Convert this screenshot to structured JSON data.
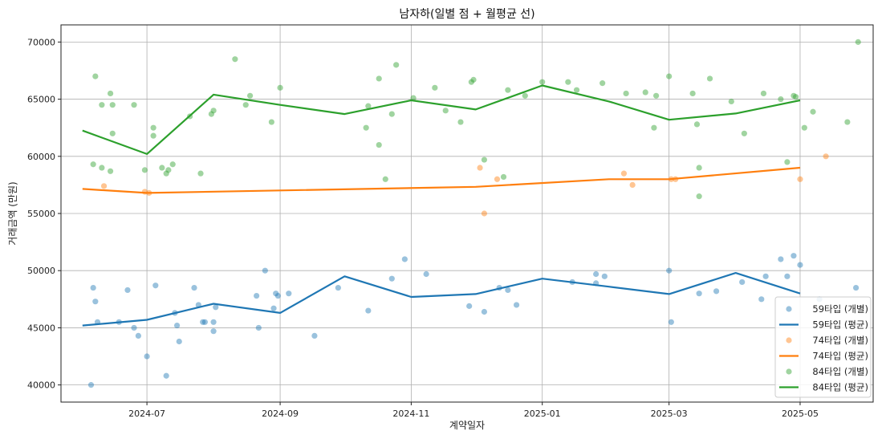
{
  "chart_data": {
    "type": "scatter+line",
    "title": "남자하(일별 점 + 월평균 선)",
    "xlabel": "계약일자",
    "ylabel": "거래금액 (만원)",
    "xlim": [
      "2024-05-22",
      "2025-06-04"
    ],
    "ylim": [
      38500,
      71500
    ],
    "yticks": [
      40000,
      45000,
      50000,
      55000,
      60000,
      65000,
      70000
    ],
    "xticks": [
      {
        "date": "2024-07-01",
        "label": "2024-07"
      },
      {
        "date": "2024-09-01",
        "label": "2024-09"
      },
      {
        "date": "2024-11-01",
        "label": "2024-11"
      },
      {
        "date": "2025-01-01",
        "label": "2025-01"
      },
      {
        "date": "2025-03-01",
        "label": "2025-03"
      },
      {
        "date": "2025-05-01",
        "label": "2025-05"
      }
    ],
    "grid": true,
    "legend_position": "lower-right",
    "series": [
      {
        "name": "59타입",
        "color": "#1f77b4",
        "points_label": "59타입 (개별)",
        "line_label": "59타입 (평균)",
        "points": [
          [
            "2024-06-05",
            40000
          ],
          [
            "2024-06-06",
            48500
          ],
          [
            "2024-06-07",
            47300
          ],
          [
            "2024-06-08",
            45500
          ],
          [
            "2024-06-18",
            45500
          ],
          [
            "2024-06-22",
            48300
          ],
          [
            "2024-06-25",
            45000
          ],
          [
            "2024-06-27",
            44300
          ],
          [
            "2024-07-01",
            42500
          ],
          [
            "2024-07-05",
            48700
          ],
          [
            "2024-07-10",
            40800
          ],
          [
            "2024-07-14",
            46300
          ],
          [
            "2024-07-15",
            45200
          ],
          [
            "2024-07-16",
            43800
          ],
          [
            "2024-07-23",
            48500
          ],
          [
            "2024-07-25",
            47000
          ],
          [
            "2024-07-27",
            45500
          ],
          [
            "2024-07-28",
            45500
          ],
          [
            "2024-08-01",
            44700
          ],
          [
            "2024-08-01",
            45500
          ],
          [
            "2024-08-02",
            46800
          ],
          [
            "2024-08-21",
            47800
          ],
          [
            "2024-08-22",
            45000
          ],
          [
            "2024-08-25",
            50000
          ],
          [
            "2024-08-29",
            46700
          ],
          [
            "2024-08-30",
            48000
          ],
          [
            "2024-08-31",
            47800
          ],
          [
            "2024-09-05",
            48000
          ],
          [
            "2024-09-17",
            44300
          ],
          [
            "2024-09-28",
            48500
          ],
          [
            "2024-10-12",
            46500
          ],
          [
            "2024-10-23",
            49300
          ],
          [
            "2024-10-29",
            51000
          ],
          [
            "2024-11-08",
            49700
          ],
          [
            "2024-11-28",
            46900
          ],
          [
            "2024-12-05",
            46400
          ],
          [
            "2024-12-12",
            48500
          ],
          [
            "2024-12-16",
            48300
          ],
          [
            "2024-12-20",
            47000
          ],
          [
            "2025-01-15",
            49000
          ],
          [
            "2025-01-26",
            48900
          ],
          [
            "2025-01-26",
            49700
          ],
          [
            "2025-01-30",
            49500
          ],
          [
            "2025-03-01",
            50000
          ],
          [
            "2025-03-02",
            45500
          ],
          [
            "2025-03-15",
            48000
          ],
          [
            "2025-03-23",
            48200
          ],
          [
            "2025-04-04",
            49000
          ],
          [
            "2025-04-13",
            47500
          ],
          [
            "2025-04-15",
            49500
          ],
          [
            "2025-04-22",
            51000
          ],
          [
            "2025-04-25",
            49500
          ],
          [
            "2025-04-28",
            51300
          ],
          [
            "2025-05-01",
            50500
          ],
          [
            "2025-05-10",
            47500
          ],
          [
            "2025-05-27",
            48500
          ]
        ],
        "monthly_avg": [
          [
            "2024-06-01",
            45200
          ],
          [
            "2024-07-01",
            45700
          ],
          [
            "2024-08-01",
            47100
          ],
          [
            "2024-09-01",
            46300
          ],
          [
            "2024-10-01",
            49500
          ],
          [
            "2024-11-01",
            47700
          ],
          [
            "2024-12-01",
            47950
          ],
          [
            "2025-01-01",
            49300
          ],
          [
            "2025-02-01",
            48600
          ],
          [
            "2025-03-01",
            47950
          ],
          [
            "2025-04-01",
            49800
          ],
          [
            "2025-05-01",
            48000
          ]
        ]
      },
      {
        "name": "74타입",
        "color": "#ff7f0e",
        "points_label": "74타입 (개별)",
        "line_label": "74타입 (평균)",
        "points": [
          [
            "2024-06-11",
            57400
          ],
          [
            "2024-06-30",
            56900
          ],
          [
            "2024-07-02",
            56800
          ],
          [
            "2024-12-03",
            59000
          ],
          [
            "2024-12-05",
            55000
          ],
          [
            "2024-12-11",
            58000
          ],
          [
            "2025-02-08",
            58500
          ],
          [
            "2025-02-12",
            57500
          ],
          [
            "2025-03-02",
            58000
          ],
          [
            "2025-03-04",
            58000
          ],
          [
            "2025-05-01",
            58000
          ],
          [
            "2025-05-13",
            60000
          ]
        ],
        "monthly_avg": [
          [
            "2024-06-01",
            57150
          ],
          [
            "2024-07-01",
            56800
          ],
          [
            "2024-12-01",
            57330
          ],
          [
            "2025-02-01",
            58000
          ],
          [
            "2025-03-01",
            58000
          ],
          [
            "2025-05-01",
            59000
          ]
        ]
      },
      {
        "name": "84타입",
        "color": "#2ca02c",
        "points_label": "84타입 (개별)",
        "line_label": "84타입 (평균)",
        "points": [
          [
            "2024-06-06",
            59300
          ],
          [
            "2024-06-07",
            67000
          ],
          [
            "2024-06-10",
            64500
          ],
          [
            "2024-06-10",
            59000
          ],
          [
            "2024-06-14",
            58700
          ],
          [
            "2024-06-14",
            65500
          ],
          [
            "2024-06-15",
            64500
          ],
          [
            "2024-06-15",
            62000
          ],
          [
            "2024-06-25",
            64500
          ],
          [
            "2024-06-30",
            58800
          ],
          [
            "2024-07-04",
            62500
          ],
          [
            "2024-07-04",
            61800
          ],
          [
            "2024-07-08",
            59000
          ],
          [
            "2024-07-10",
            58500
          ],
          [
            "2024-07-11",
            58800
          ],
          [
            "2024-07-13",
            59300
          ],
          [
            "2024-07-21",
            63500
          ],
          [
            "2024-07-26",
            58500
          ],
          [
            "2024-07-31",
            63700
          ],
          [
            "2024-08-01",
            64000
          ],
          [
            "2024-08-11",
            68500
          ],
          [
            "2024-08-16",
            64500
          ],
          [
            "2024-08-18",
            65300
          ],
          [
            "2024-08-28",
            63000
          ],
          [
            "2024-09-01",
            66000
          ],
          [
            "2024-10-11",
            62500
          ],
          [
            "2024-10-12",
            64400
          ],
          [
            "2024-10-17",
            61000
          ],
          [
            "2024-10-17",
            66800
          ],
          [
            "2024-10-20",
            58000
          ],
          [
            "2024-10-23",
            63700
          ],
          [
            "2024-10-25",
            68000
          ],
          [
            "2024-11-02",
            65100
          ],
          [
            "2024-11-12",
            66000
          ],
          [
            "2024-11-17",
            64000
          ],
          [
            "2024-11-24",
            63000
          ],
          [
            "2024-11-29",
            66500
          ],
          [
            "2024-11-30",
            66700
          ],
          [
            "2024-12-05",
            59700
          ],
          [
            "2024-12-14",
            58200
          ],
          [
            "2024-12-16",
            65800
          ],
          [
            "2024-12-24",
            65300
          ],
          [
            "2025-01-01",
            66500
          ],
          [
            "2025-01-13",
            66500
          ],
          [
            "2025-01-17",
            65800
          ],
          [
            "2025-01-29",
            66400
          ],
          [
            "2025-02-09",
            65500
          ],
          [
            "2025-02-18",
            65600
          ],
          [
            "2025-02-22",
            62500
          ],
          [
            "2025-02-23",
            65300
          ],
          [
            "2025-03-01",
            67000
          ],
          [
            "2025-03-12",
            65500
          ],
          [
            "2025-03-14",
            62800
          ],
          [
            "2025-03-15",
            59000
          ],
          [
            "2025-03-15",
            56500
          ],
          [
            "2025-03-20",
            66800
          ],
          [
            "2025-03-30",
            64800
          ],
          [
            "2025-04-05",
            62000
          ],
          [
            "2025-04-14",
            65500
          ],
          [
            "2025-04-22",
            65000
          ],
          [
            "2025-04-25",
            59500
          ],
          [
            "2025-04-28",
            65300
          ],
          [
            "2025-04-29",
            65200
          ],
          [
            "2025-05-03",
            62500
          ],
          [
            "2025-05-07",
            63900
          ],
          [
            "2025-05-23",
            63000
          ],
          [
            "2025-05-28",
            70000
          ]
        ],
        "monthly_avg": [
          [
            "2024-06-01",
            62250
          ],
          [
            "2024-07-01",
            60200
          ],
          [
            "2024-08-01",
            65400
          ],
          [
            "2024-09-01",
            64500
          ],
          [
            "2024-10-01",
            63700
          ],
          [
            "2024-11-01",
            64900
          ],
          [
            "2024-12-01",
            64100
          ],
          [
            "2025-01-01",
            66200
          ],
          [
            "2025-02-01",
            64800
          ],
          [
            "2025-03-01",
            63200
          ],
          [
            "2025-04-01",
            63750
          ],
          [
            "2025-05-01",
            64900
          ]
        ]
      }
    ]
  }
}
